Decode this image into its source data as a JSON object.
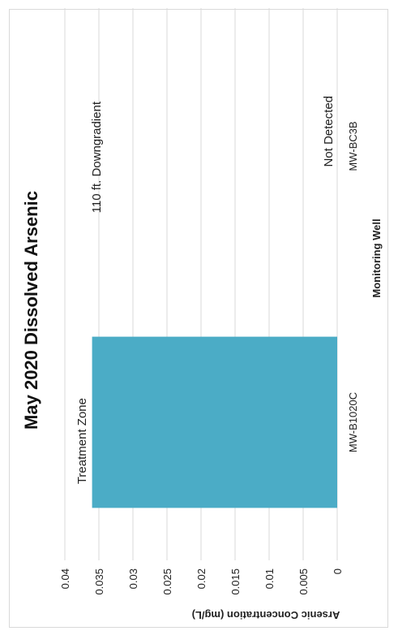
{
  "chart_data": {
    "type": "bar",
    "title": "May 2020 Dissolved Arsenic",
    "xlabel": "Monitoring Well",
    "ylabel": "Arsenic Concentration (mg/L)",
    "categories": [
      "MW-B1020C",
      "MW-BC3B"
    ],
    "values": [
      0.036,
      0
    ],
    "annotations": [
      "Treatment Zone",
      "110 ft. Downgradient",
      "Not Detected"
    ],
    "ylim": [
      0,
      0.04
    ],
    "yticks": [
      "0",
      "0.005",
      "0.01",
      "0.015",
      "0.02",
      "0.025",
      "0.03",
      "0.035",
      "0.04"
    ],
    "grid": true,
    "legend": "none",
    "orientation": "rotated-90",
    "bar_color": "#4bacc6",
    "grid_color": "#d9d9d9"
  }
}
